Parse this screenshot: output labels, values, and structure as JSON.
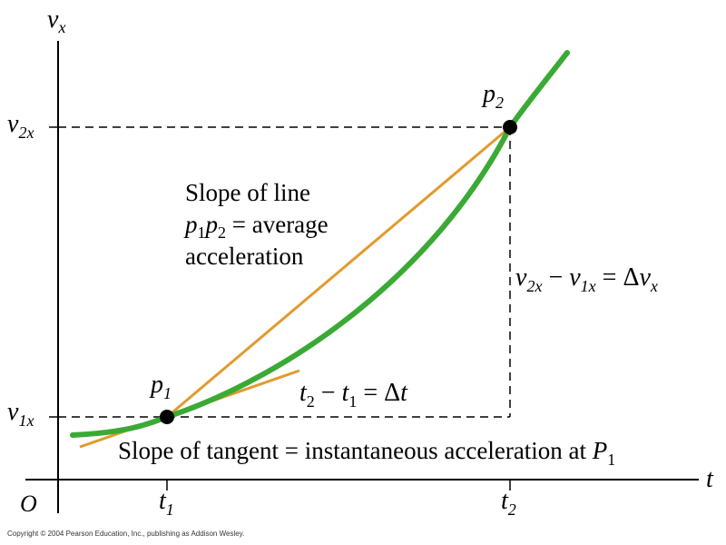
{
  "labels": {
    "v_axis_var": "v",
    "v_axis_sub": "x",
    "t_axis": "t",
    "origin": "O",
    "v2x_main": "v",
    "v2x_sub": "2x",
    "v1x_main": "v",
    "v1x_sub": "1x",
    "t1_main": "t",
    "t1_sub": "1",
    "t2_main": "t",
    "t2_sub": "2",
    "p1_main": "p",
    "p1_sub": "1",
    "p2_main": "p",
    "p2_sub": "2"
  },
  "annotations": {
    "secant_line1": "Slope of line",
    "secant_p1": "p",
    "secant_p1_sub": "1",
    "secant_p2": "p",
    "secant_p2_sub": "2",
    "secant_rest": " = average",
    "secant_line3": "acceleration",
    "delta_v_a": "v",
    "delta_v_a_sub": "2x",
    "delta_v_mid": " − ",
    "delta_v_b": "v",
    "delta_v_b_sub": "1x",
    "delta_v_eq": " = Δ",
    "delta_v_c": "v",
    "delta_v_c_sub": "x",
    "delta_t_a": "t",
    "delta_t_a_sub": "2",
    "delta_t_mid": " − ",
    "delta_t_b": "t",
    "delta_t_b_sub": "1",
    "delta_t_eq": " = Δ",
    "delta_t_c": "t",
    "tangent_text": "Slope of tangent = instantaneous acceleration at ",
    "tangent_P": "P",
    "tangent_P_sub": "1"
  },
  "colors": {
    "curve": "#3aaa35",
    "lines": "#e29a2d",
    "axes": "#000000",
    "points": "#000000"
  },
  "copyright": "Copyright © 2004 Pearson Education, Inc., publishing as Addison Wesley."
}
